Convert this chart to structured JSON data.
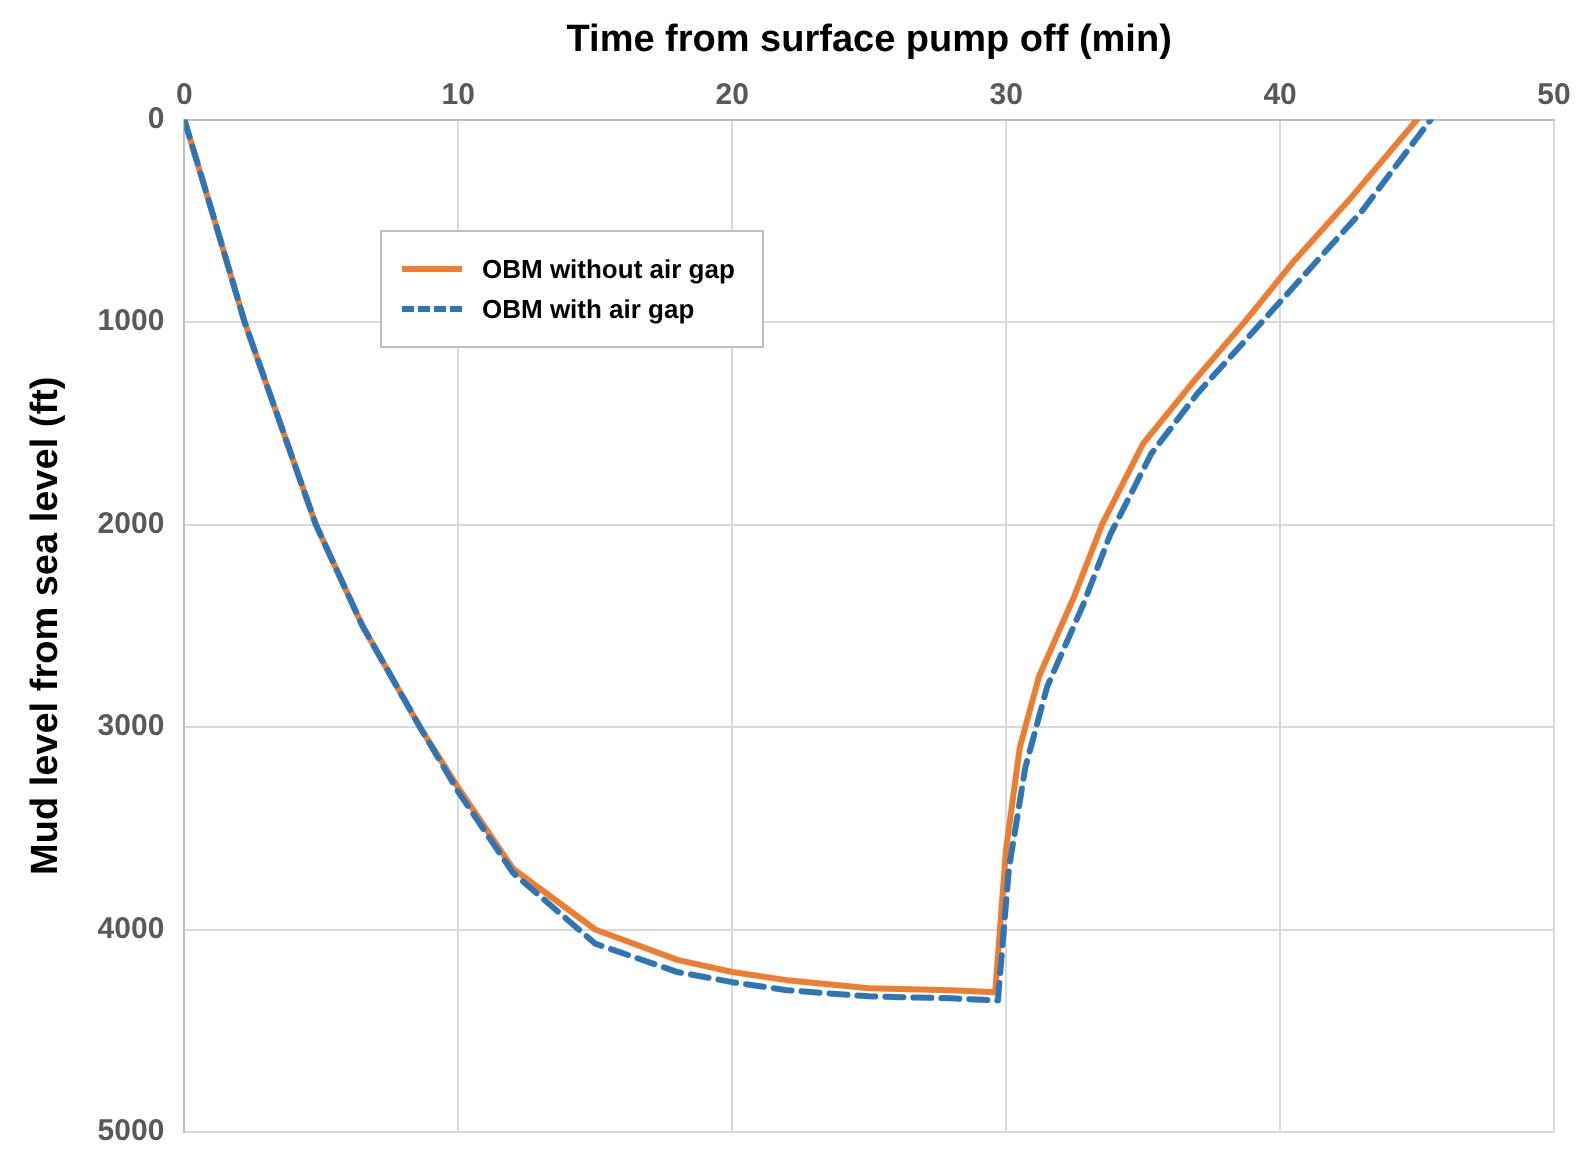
{
  "chart_data": {
    "type": "line",
    "xlabel": "Time from surface pump off (min)",
    "ylabel": "Mud level from sea level (ft)",
    "xlim": [
      0,
      50
    ],
    "xticks": [
      0,
      10,
      20,
      30,
      40,
      50
    ],
    "ylim": [
      5000,
      0
    ],
    "yticks": [
      0,
      1000,
      2000,
      3000,
      4000,
      5000
    ],
    "grid": true,
    "legend": "top left",
    "marker": "none",
    "series": [
      {
        "name": "OBM without air gap",
        "color": "#ed7d31",
        "line_style": "solid",
        "x": [
          0,
          1,
          2.2,
          3.5,
          4.8,
          6.5,
          8.6,
          10,
          12,
          15,
          18,
          20,
          22,
          25,
          28,
          29.6,
          30,
          30.5,
          31.2,
          32.5,
          33.5,
          35,
          36.8,
          38.7,
          40.5,
          42.5,
          45
        ],
        "values": [
          0,
          450,
          1000,
          1500,
          2000,
          2500,
          3000,
          3300,
          3700,
          4000,
          4150,
          4210,
          4250,
          4290,
          4300,
          4310,
          3600,
          3100,
          2750,
          2350,
          2000,
          1600,
          1300,
          1000,
          700,
          400,
          0
        ]
      },
      {
        "name": "OBM with air gap",
        "color": "#2e75b6",
        "line_style": "dashed",
        "x": [
          0,
          1,
          2.2,
          3.5,
          4.8,
          6.5,
          8.6,
          10,
          12,
          15,
          18,
          20,
          22,
          25,
          28,
          29.7,
          30.1,
          30.7,
          31.5,
          32.8,
          33.8,
          35.3,
          37,
          39,
          41,
          43,
          45.5
        ],
        "values": [
          0,
          450,
          1000,
          1500,
          2000,
          2500,
          3000,
          3320,
          3720,
          4070,
          4210,
          4260,
          4300,
          4330,
          4340,
          4350,
          3700,
          3200,
          2800,
          2400,
          2050,
          1650,
          1350,
          1050,
          750,
          450,
          0
        ]
      }
    ]
  }
}
